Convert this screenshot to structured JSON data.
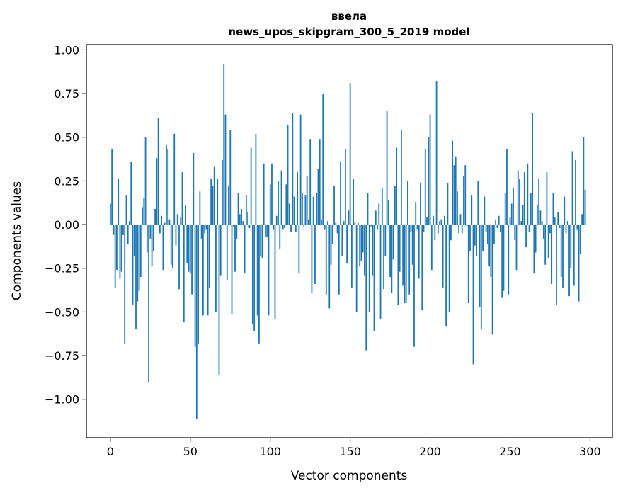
{
  "chart_data": {
    "type": "bar",
    "title_line1": "ввела",
    "title_line2": "news_upos_skipgram_300_5_2019 model",
    "xlabel": "Vector components",
    "ylabel": "Components values",
    "xlim": [
      -15,
      314
    ],
    "ylim": [
      -1.22,
      1.03
    ],
    "xticks": [
      0,
      50,
      100,
      150,
      200,
      250,
      300
    ],
    "xtick_labels": [
      "0",
      "50",
      "100",
      "150",
      "200",
      "250",
      "300"
    ],
    "yticks": [
      -1.0,
      -0.75,
      -0.5,
      -0.25,
      0.0,
      0.25,
      0.5,
      0.75,
      1.0
    ],
    "ytick_labels": [
      "−1.00",
      "−0.75",
      "−0.50",
      "−0.25",
      "0.00",
      "0.25",
      "0.50",
      "0.75",
      "1.00"
    ],
    "bar_color": "#1f77b4",
    "values": [
      0.12,
      0.43,
      -0.06,
      -0.36,
      -0.26,
      0.26,
      -0.31,
      -0.27,
      -0.06,
      -0.68,
      0.17,
      -0.11,
      0.02,
      0.36,
      -0.46,
      -0.18,
      -0.6,
      -0.44,
      -0.38,
      -0.3,
      0.1,
      0.15,
      0.5,
      -0.16,
      -0.9,
      -0.08,
      -0.24,
      -0.15,
      0.09,
      0.38,
      0.61,
      -0.05,
      0.05,
      -0.26,
      0.01,
      0.46,
      0.43,
      0.03,
      -0.23,
      -0.25,
      0.52,
      -0.12,
      0.06,
      -0.37,
      0.04,
      0.3,
      -0.56,
      0.11,
      -0.22,
      -0.27,
      -0.28,
      -0.4,
      0.41,
      -0.7,
      -1.11,
      -0.68,
      0.19,
      -0.08,
      -0.52,
      -0.05,
      -0.03,
      -0.52,
      -0.36,
      0.26,
      0.22,
      0.33,
      -0.5,
      0.26,
      -0.86,
      -0.29,
      0.37,
      0.92,
      0.63,
      -0.32,
      0.22,
      0.54,
      -0.51,
      -0.01,
      -0.27,
      -0.08,
      0.18,
      0.06,
      0.09,
      0.02,
      -0.28,
      0.17,
      0.07,
      -0.02,
      0.44,
      -0.57,
      -0.61,
      0.52,
      -0.52,
      -0.68,
      -0.18,
      -0.19,
      0.35,
      -0.07,
      -0.07,
      -0.52,
      0.23,
      0.35,
      -0.03,
      -0.54,
      0.05,
      0.25,
      -0.14,
      0.31,
      -0.03,
      -0.02,
      0.23,
      0.57,
      0.12,
      -0.04,
      0.64,
      0.16,
      -0.04,
      0.3,
      -0.28,
      0.63,
      0.18,
      -0.01,
      0.17,
      0.28,
      0.03,
      0.49,
      -0.39,
      0.16,
      -0.34,
      0.18,
      0.32,
      0.49,
      0.03,
      0.75,
      -0.03,
      -0.4,
      0.02,
      -0.48,
      -0.23,
      -0.11,
      0.22,
      0.01,
      -0.05,
      -0.4,
      0.36,
      -0.18,
      0.02,
      0.43,
      -0.22,
      0.08,
      0.81,
      -0.36,
      0.26,
      0.01,
      -0.5,
      0.01,
      -0.24,
      -0.21,
      -0.16,
      -0.29,
      -0.72,
      0.18,
      -0.5,
      -0.01,
      -0.29,
      -0.61,
      0.08,
      -0.03,
      0.12,
      -0.54,
      0.21,
      -0.37,
      -0.18,
      0.65,
      0.14,
      -0.3,
      -0.39,
      -0.2,
      0.22,
      0.44,
      -0.46,
      -0.27,
      0.54,
      -0.35,
      -0.45,
      -0.45,
      0.25,
      -0.4,
      -0.04,
      -0.23,
      -0.7,
      0.13,
      -0.03,
      -0.31,
      0.24,
      -0.49,
      -0.04,
      0.43,
      0.04,
      0.5,
      0.63,
      -0.26,
      0.05,
      -0.09,
      0.82,
      -0.05,
      0.02,
      0.03,
      -0.36,
      0.05,
      -0.58,
      0.24,
      -0.5,
      -0.09,
      0.48,
      0.34,
      0.39,
      0.19,
      -0.05,
      0.06,
      -0.05,
      0.28,
      0.34,
      -0.01,
      -0.45,
      -0.15,
      0.17,
      -0.8,
      -0.12,
      -0.18,
      0.25,
      -0.47,
      -0.6,
      -0.15,
      0.16,
      -0.04,
      -0.11,
      -0.24,
      -0.3,
      -0.63,
      -0.11,
      0.03,
      -0.02,
      0.05,
      -0.04,
      -0.42,
      -0.38,
      0.18,
      0.43,
      -0.4,
      0.04,
      0.12,
      0.21,
      -0.09,
      -0.26,
      0.31,
      0.26,
      0.02,
      0.11,
      0.3,
      -0.13,
      0.35,
      -0.04,
      0.18,
      0.64,
      -0.28,
      -0.16,
      0.11,
      0.26,
      0.08,
      0.02,
      -0.08,
      -0.23,
      0.3,
      -0.19,
      -0.05,
      -0.34,
      0.18,
      0.04,
      -0.46,
      0.07,
      -0.02,
      -0.3,
      -0.36,
      0.16,
      -0.05,
      0.02,
      -0.41,
      -0.25,
      0.42,
      -0.35,
      0.37,
      -0.03,
      -0.44,
      -0.17,
      0.06,
      0.5,
      0.2
    ]
  }
}
